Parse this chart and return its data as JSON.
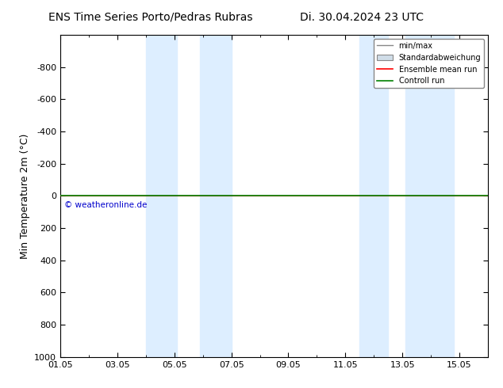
{
  "title_left": "ENS Time Series Porto/Pedras Rubras",
  "title_right": "Di. 30.04.2024 23 UTC",
  "ylabel": "Min Temperature 2m (°C)",
  "ylim_top": -1000,
  "ylim_bottom": 1000,
  "yticks": [
    -800,
    -600,
    -400,
    -200,
    0,
    200,
    400,
    600,
    800,
    1000
  ],
  "xtick_labels": [
    "01.05",
    "03.05",
    "05.05",
    "07.05",
    "09.05",
    "11.05",
    "13.05",
    "15.05"
  ],
  "xtick_positions": [
    0,
    2,
    4,
    6,
    8,
    10,
    12,
    14
  ],
  "blue_bands": [
    [
      3.0,
      4.1
    ],
    [
      4.9,
      6.0
    ],
    [
      10.5,
      11.5
    ],
    [
      12.1,
      13.8
    ]
  ],
  "control_run_y": 0,
  "ensemble_mean_y": 0,
  "line_color_control": "#008000",
  "line_color_ensemble": "#ff0000",
  "band_color": "#ddeeff",
  "copyright_text": "© weatheronline.de",
  "copyright_color": "#0000cc",
  "legend_labels": [
    "min/max",
    "Standardabweichung",
    "Ensemble mean run",
    "Controll run"
  ],
  "legend_colors": [
    "#888888",
    "#bbbbbb",
    "#ff0000",
    "#008000"
  ],
  "background_color": "#ffffff",
  "title_fontsize": 10,
  "axis_fontsize": 9,
  "tick_fontsize": 8
}
